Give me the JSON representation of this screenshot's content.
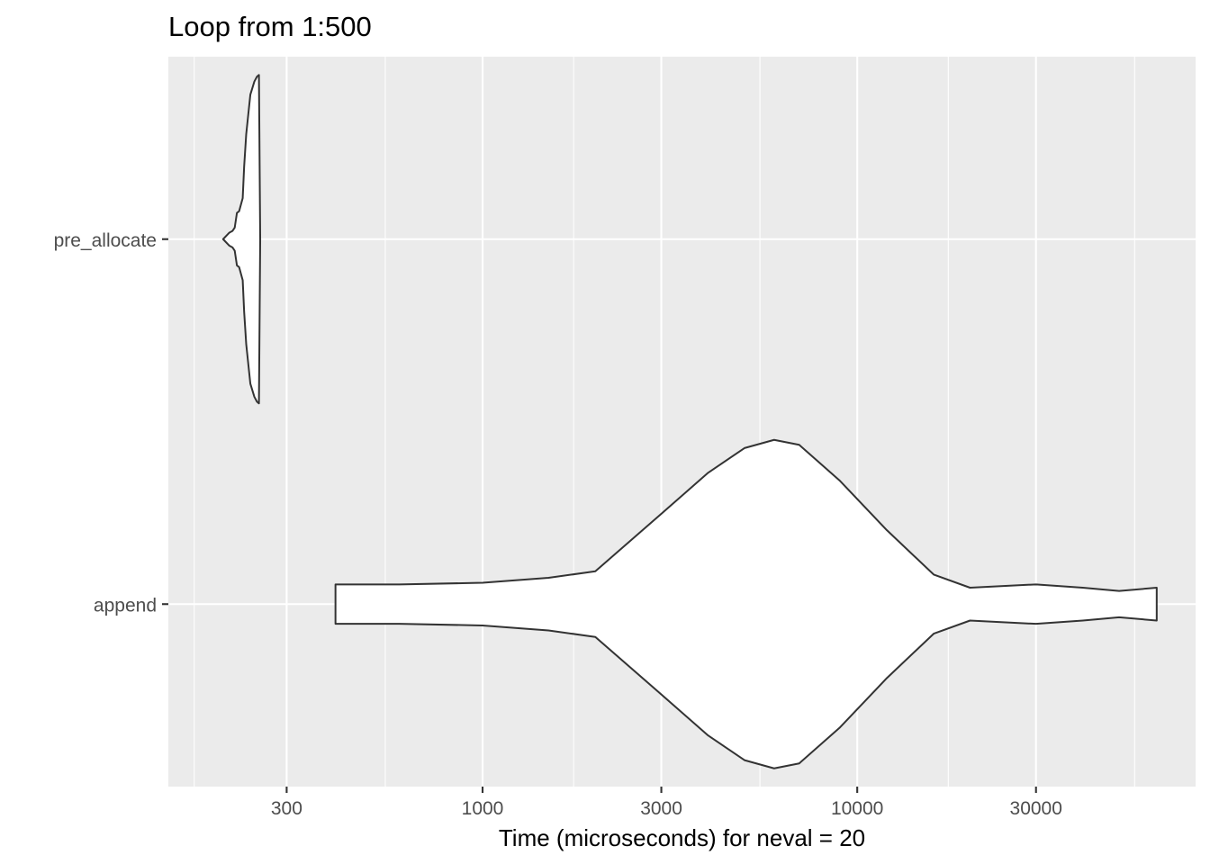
{
  "chart_data": {
    "type": "violin",
    "orientation": "horizontal",
    "title": "Loop from 1:500",
    "xlabel": "Time (microseconds) for neval = 20",
    "ylabel": "",
    "x_scale": "log10",
    "xlim": [
      145,
      80000
    ],
    "x_ticks": [
      300,
      1000,
      3000,
      10000,
      30000
    ],
    "x_tick_labels": [
      "300",
      "1000",
      "3000",
      "10000",
      "30000"
    ],
    "x_minor_ticks": [
      170,
      550,
      1750,
      5500,
      17500,
      55000
    ],
    "categories": [
      "pre_allocate",
      "append"
    ],
    "series": [
      {
        "name": "pre_allocate",
        "min": 203,
        "max": 255,
        "profile": [
          [
            203,
            0.0
          ],
          [
            211,
            0.04
          ],
          [
            215,
            0.05
          ],
          [
            218,
            0.07
          ],
          [
            220,
            0.13
          ],
          [
            221,
            0.16
          ],
          [
            224,
            0.17
          ],
          [
            229,
            0.25
          ],
          [
            231,
            0.44
          ],
          [
            234,
            0.64
          ],
          [
            240,
            0.88
          ],
          [
            246,
            0.96
          ],
          [
            250,
            0.99
          ],
          [
            253,
            1.0
          ],
          [
            255,
            0.0
          ]
        ]
      },
      {
        "name": "append",
        "min": 405,
        "max": 63000,
        "profile": [
          [
            405,
            0.12
          ],
          [
            600,
            0.12
          ],
          [
            1000,
            0.13
          ],
          [
            1500,
            0.16
          ],
          [
            2000,
            0.2
          ],
          [
            3000,
            0.55
          ],
          [
            4000,
            0.8
          ],
          [
            5000,
            0.95
          ],
          [
            6000,
            1.0
          ],
          [
            7000,
            0.97
          ],
          [
            9000,
            0.75
          ],
          [
            12000,
            0.45
          ],
          [
            16000,
            0.18
          ],
          [
            20000,
            0.1
          ],
          [
            30000,
            0.12
          ],
          [
            40000,
            0.1
          ],
          [
            50000,
            0.08
          ],
          [
            63000,
            0.1
          ]
        ]
      }
    ],
    "grid": true,
    "legend": "none",
    "panel_background": "#EBEBEB",
    "violin_fill": "#FFFFFF",
    "violin_outline": "#333333"
  }
}
